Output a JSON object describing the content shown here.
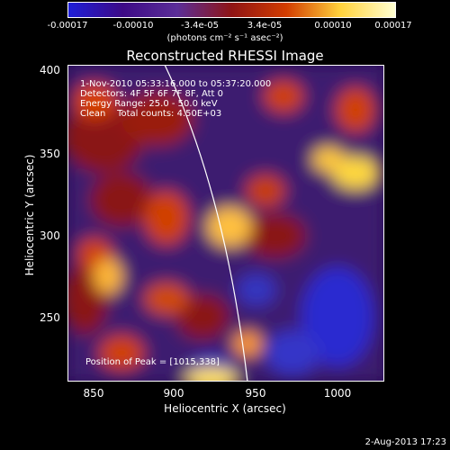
{
  "colorbar": {
    "ticks": [
      "-0.00017",
      "-0.00010",
      "-3.4e-05",
      "3.4e-05",
      "0.00010",
      "0.00017"
    ],
    "unit": "(photons cm⁻² s⁻¹ asec⁻²)",
    "colors": [
      "#1e1ed8",
      "#3d0a86",
      "#5b2e98",
      "#8f1414",
      "#d23c00",
      "#ffd23c",
      "#ffffd2"
    ]
  },
  "plot": {
    "title": "Reconstructed RHESSI Image",
    "xlabel": "Heliocentric X (arcsec)",
    "ylabel": "Heliocentric Y (arcsec)",
    "xticks": [
      "850",
      "900",
      "950",
      "1000"
    ],
    "yticks": [
      "400",
      "350",
      "300",
      "250"
    ],
    "info": {
      "time": "1-Nov-2010 05:33:16.000 to 05:37:20.000",
      "detectors": "Detectors: 4F 5F 6F 7F 8F, Att 0",
      "energy": "Energy Range: 25.0 - 50.0 keV",
      "clean": "Clean    Total counts: 4.50E+03"
    },
    "peak": "Position of Peak = [1015,338]"
  },
  "footer": {
    "date": "2-Aug-2013 17:23"
  },
  "chart_data": {
    "type": "heatmap",
    "title": "Reconstructed RHESSI Image",
    "xlabel": "Heliocentric X (arcsec)",
    "ylabel": "Heliocentric Y (arcsec)",
    "xlim": [
      835,
      1025
    ],
    "ylim": [
      205,
      400
    ],
    "colorbar_ticks": [
      -0.00017,
      -0.0001,
      -3.4e-05,
      3.4e-05,
      0.0001,
      0.00017
    ],
    "peak_position": [
      1015,
      338
    ]
  }
}
